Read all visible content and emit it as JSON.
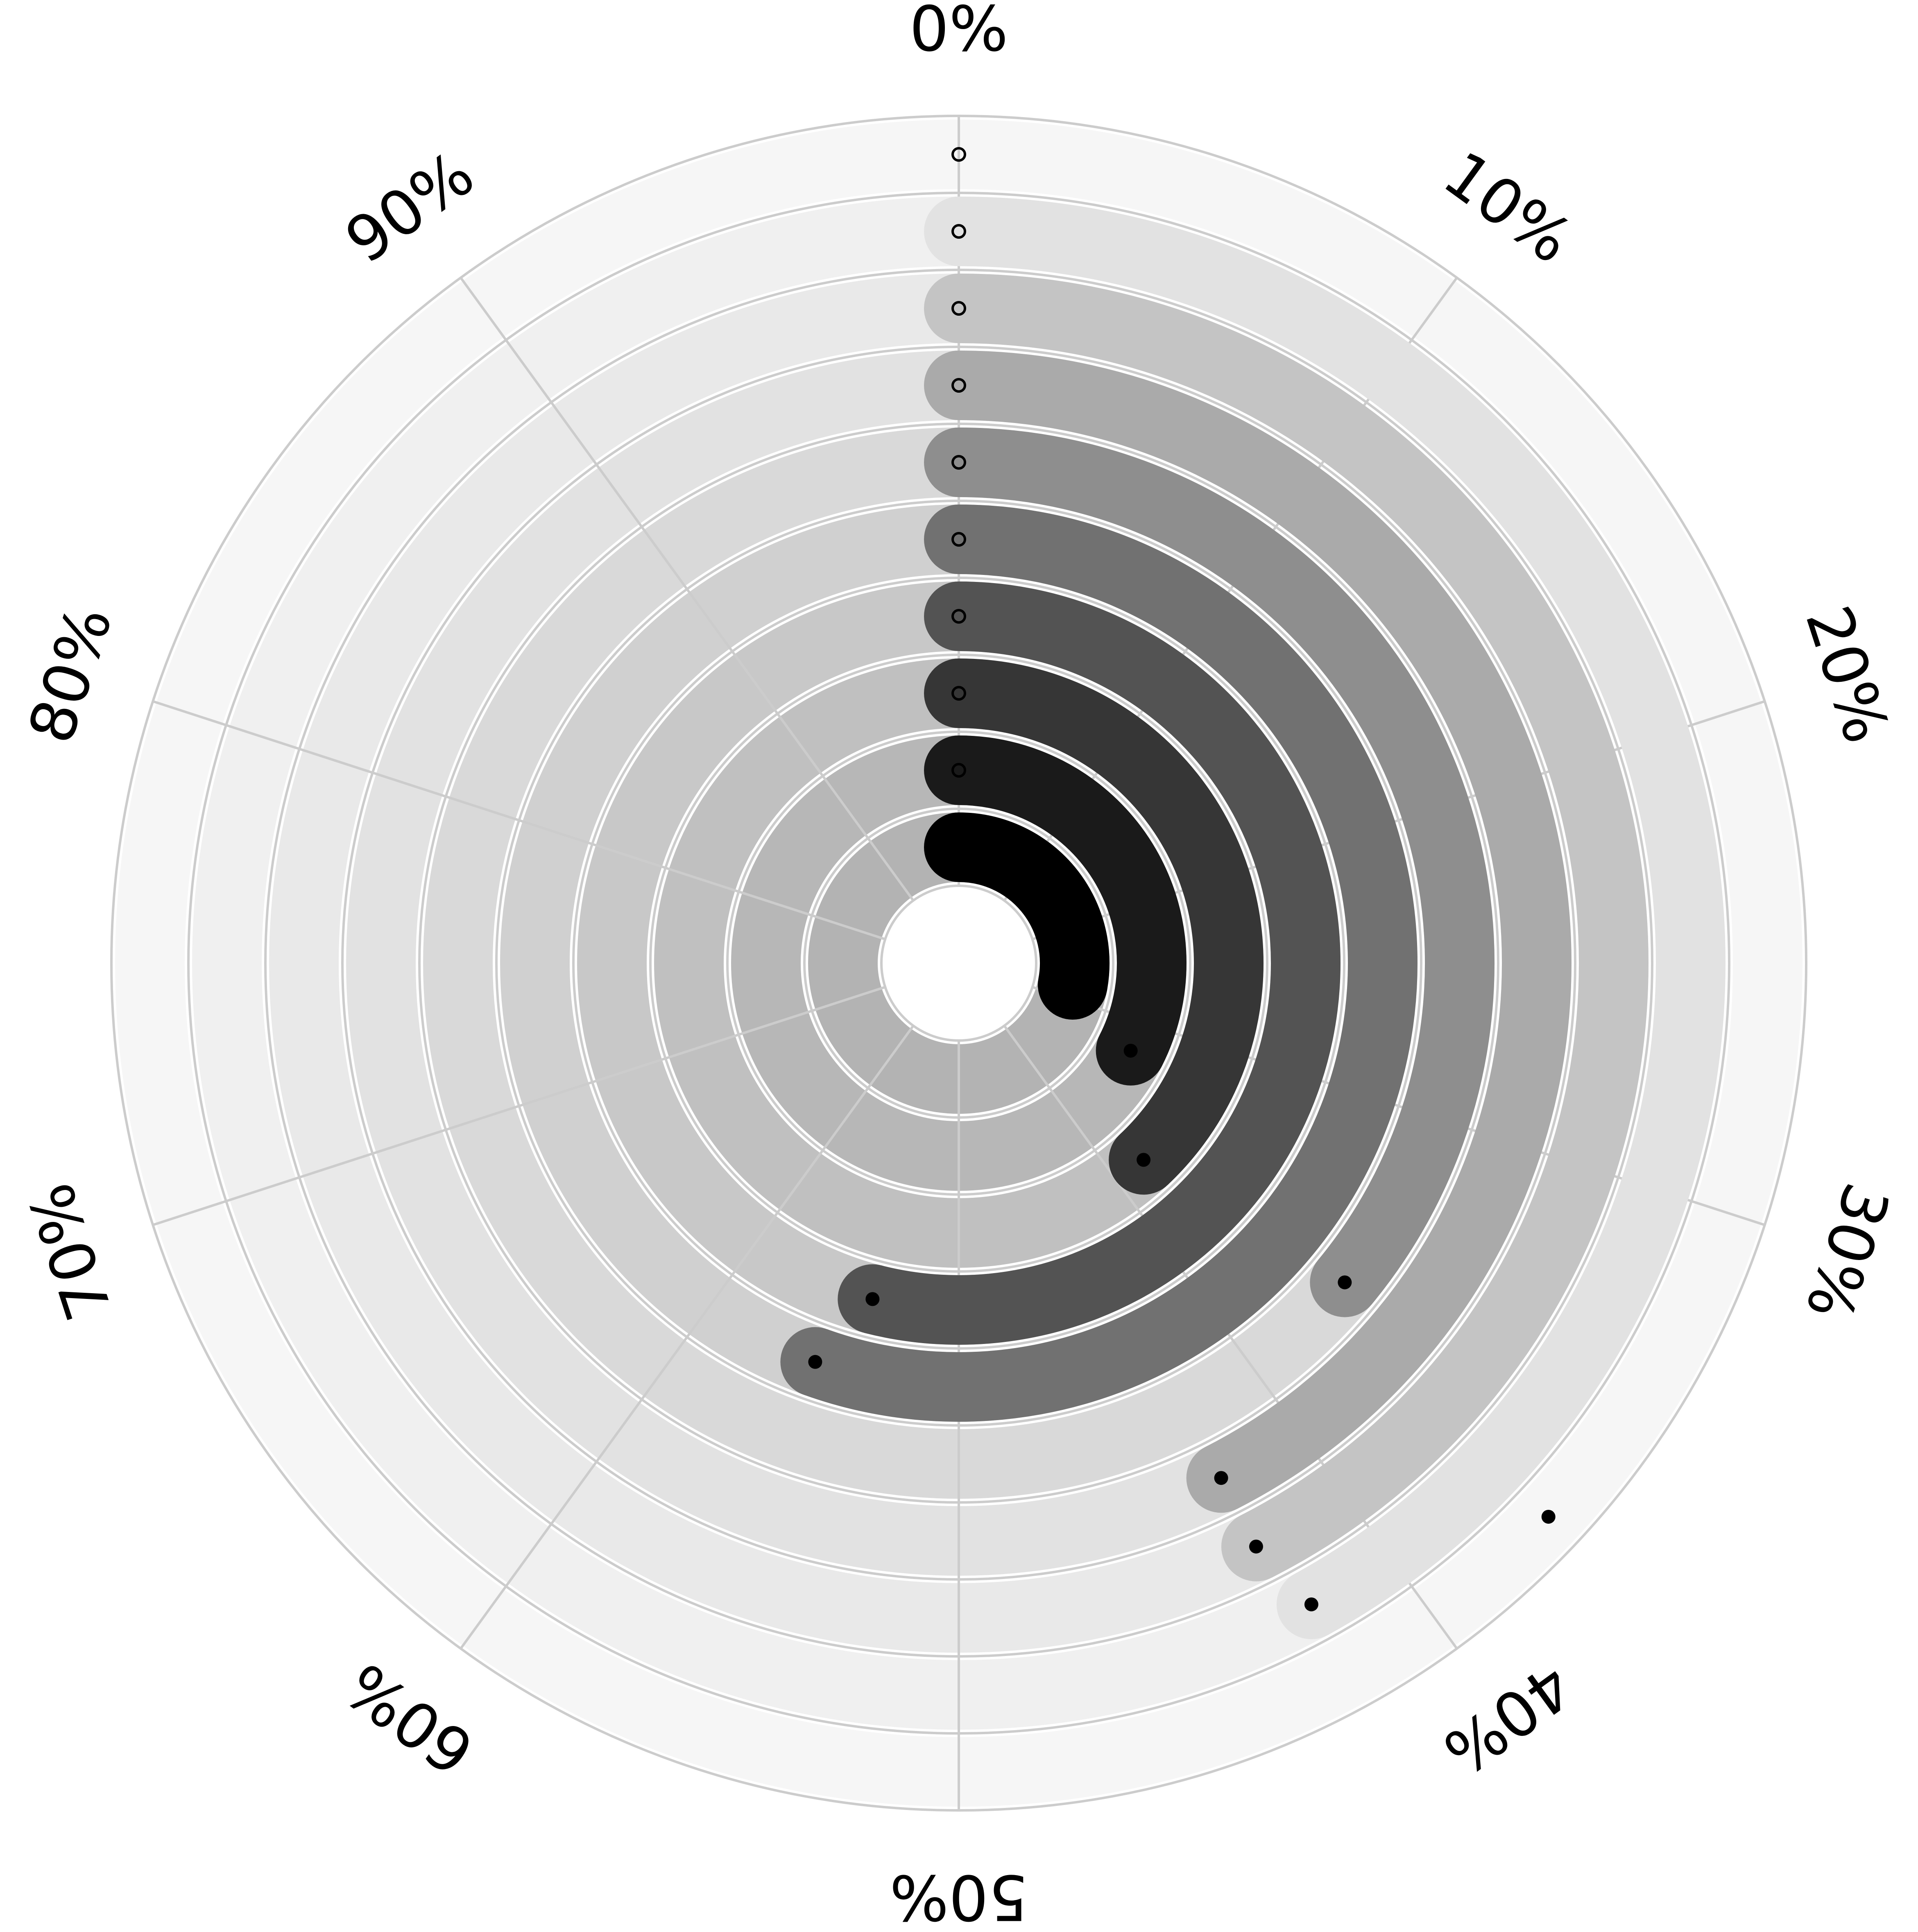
{
  "chart_data": {
    "type": "radial_bar",
    "angular_axis": {
      "direction": "clockwise",
      "zero_at": "top",
      "range": [
        0,
        100
      ],
      "tick_labels": [
        "0%",
        "10%",
        "20%",
        "30%",
        "40%",
        "50%",
        "60%",
        "70%",
        "80%",
        "90%"
      ]
    },
    "grid": true,
    "legend": "none",
    "rings": [
      {
        "value": 28.0,
        "bar_color": "#000000",
        "track_color": "#b3b3b3",
        "marker_value": 28.0
      },
      {
        "value": 32.5,
        "bar_color": "#1a1a1a",
        "track_color": "#b7b7b7",
        "marker_value": 32.5
      },
      {
        "value": 38.0,
        "bar_color": "#363636",
        "track_color": "#c0c0c0",
        "marker_value": 38.0
      },
      {
        "value": 54.0,
        "bar_color": "#535353",
        "track_color": "#c8c8c8",
        "marker_value": 54.0
      },
      {
        "value": 55.5,
        "bar_color": "#717171",
        "track_color": "#d0d0d0",
        "marker_value": 55.5
      },
      {
        "value": 36.0,
        "bar_color": "#8e8e8e",
        "track_color": "#d9d9d9",
        "marker_value": 36.0
      },
      {
        "value": 42.5,
        "bar_color": "#aaaaaa",
        "track_color": "#e2e2e2",
        "marker_value": 42.5
      },
      {
        "value": 42.5,
        "bar_color": "#c4c4c4",
        "track_color": "#e9e9e9",
        "marker_value": 42.5
      },
      {
        "value": 42.0,
        "bar_color": "#e2e2e2",
        "track_color": "#f0f0f0",
        "marker_value": 42.0
      },
      {
        "value": 0,
        "bar_color": "#f3f3f3",
        "track_color": "#f6f6f6",
        "marker_value": 37.0
      }
    ],
    "colors": {
      "grid": "#cccccc",
      "separator": "#ffffff",
      "marker_filled": "#000000",
      "marker_open_stroke": "#000000"
    }
  }
}
